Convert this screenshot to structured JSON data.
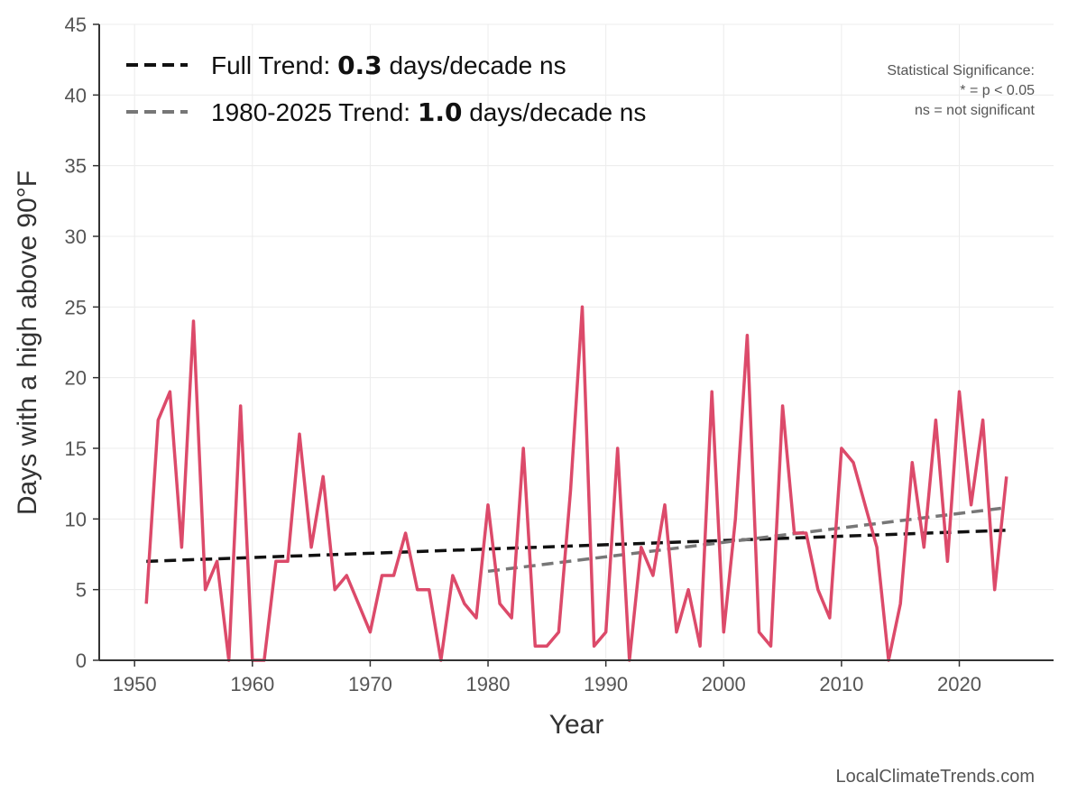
{
  "chart_data": {
    "type": "line",
    "title": "",
    "xlabel": "Year",
    "ylabel": "Days with a high above 90°F",
    "xlim": [
      1947,
      2028
    ],
    "ylim": [
      0,
      45
    ],
    "xticks": [
      1950,
      1960,
      1970,
      1980,
      1990,
      2000,
      2010,
      2020
    ],
    "yticks": [
      0,
      5,
      10,
      15,
      20,
      25,
      30,
      35,
      40,
      45
    ],
    "grid": true,
    "legend_position": "top-left",
    "series": [
      {
        "color": "#dc4a6a",
        "x": [
          1951,
          1952,
          1953,
          1954,
          1955,
          1956,
          1957,
          1958,
          1959,
          1960,
          1961,
          1962,
          1963,
          1964,
          1965,
          1966,
          1967,
          1968,
          1969,
          1970,
          1971,
          1972,
          1973,
          1974,
          1975,
          1976,
          1977,
          1978,
          1979,
          1980,
          1981,
          1982,
          1983,
          1984,
          1985,
          1986,
          1987,
          1988,
          1989,
          1990,
          1991,
          1992,
          1993,
          1994,
          1995,
          1996,
          1997,
          1998,
          1999,
          2000,
          2001,
          2002,
          2003,
          2004,
          2005,
          2006,
          2007,
          2008,
          2009,
          2010,
          2011,
          2012,
          2013,
          2014,
          2015,
          2016,
          2017,
          2018,
          2019,
          2020,
          2021,
          2022,
          2023,
          2024
        ],
        "y": [
          4,
          17,
          19,
          8,
          24,
          5,
          7,
          0,
          18,
          0,
          0,
          7,
          7,
          16,
          8,
          13,
          5,
          6,
          4,
          2,
          6,
          6,
          9,
          5,
          5,
          0,
          6,
          4,
          3,
          11,
          4,
          3,
          15,
          1,
          1,
          2,
          12,
          25,
          1,
          2,
          15,
          0,
          8,
          6,
          11,
          2,
          5,
          1,
          19,
          2,
          10,
          23,
          2,
          1,
          18,
          9,
          9,
          5,
          3,
          15,
          14,
          11,
          8,
          0,
          4,
          14,
          8,
          17,
          7,
          19,
          11,
          17,
          5,
          13
        ]
      }
    ],
    "trends": [
      {
        "label_prefix": "Full Trend: ",
        "value": "0.3",
        "label_suffix": " days/decade ns",
        "color": "#111111",
        "x": [
          1951,
          2024
        ],
        "y": [
          7.0,
          9.2
        ]
      },
      {
        "label_prefix": "1980-2025 Trend: ",
        "value": "1.0",
        "label_suffix": " days/decade ns",
        "color": "#777777",
        "x": [
          1980,
          2024
        ],
        "y": [
          6.3,
          10.8
        ]
      }
    ],
    "annotation": [
      "Statistical Significance:",
      "* = p < 0.05",
      "ns = not significant"
    ]
  },
  "credit": "LocalClimateTrends.com"
}
